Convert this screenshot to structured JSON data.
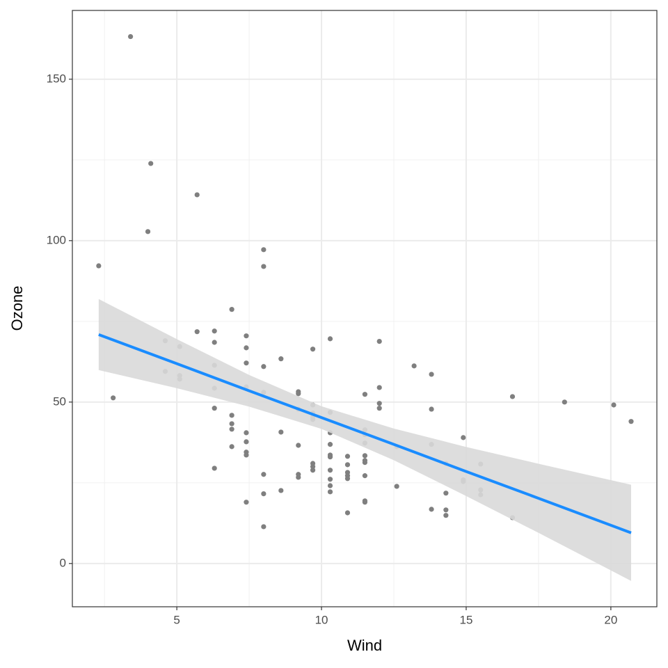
{
  "chart_data": {
    "type": "scatter",
    "x_label": "Wind",
    "y_label": "Ozone",
    "xlim": [
      1.39,
      21.59
    ],
    "ylim": [
      -13.4,
      171.3
    ],
    "xticks": [
      5,
      10,
      15,
      20
    ],
    "yticks": [
      0,
      50,
      100,
      150
    ],
    "minor_xticks": [
      2.5,
      7.5,
      12.5,
      17.5
    ],
    "minor_yticks": [
      25,
      75,
      125
    ],
    "grid": true,
    "point_color": "#7f7f7f",
    "x": [
      3.4,
      2.3,
      2.8,
      4.1,
      4.0,
      5.7,
      4.6,
      4.6,
      5.1,
      5.1,
      5.1,
      5.7,
      6.3,
      6.3,
      6.3,
      6.3,
      6.3,
      6.3,
      6.9,
      6.9,
      6.9,
      6.9,
      6.9,
      7.4,
      7.4,
      7.4,
      7.4,
      7.4,
      7.4,
      7.4,
      7.4,
      7.4,
      8.0,
      8.0,
      8.0,
      8.0,
      8.0,
      8.0,
      8.0,
      8.6,
      8.6,
      8.6,
      9.2,
      9.2,
      9.2,
      9.2,
      9.2,
      9.2,
      9.7,
      9.7,
      9.7,
      9.7,
      9.7,
      9.7,
      9.7,
      9.7,
      10.3,
      10.3,
      10.3,
      10.3,
      10.3,
      10.3,
      10.3,
      10.3,
      10.3,
      10.3,
      10.9,
      10.9,
      10.9,
      10.9,
      10.9,
      10.9,
      11.5,
      11.5,
      11.5,
      11.5,
      11.5,
      11.5,
      11.5,
      11.5,
      11.5,
      11.5,
      12.0,
      12.0,
      12.0,
      12.0,
      12.6,
      12.6,
      13.2,
      13.8,
      13.8,
      13.8,
      13.8,
      14.3,
      14.3,
      14.3,
      14.3,
      14.9,
      14.9,
      14.9,
      15.5,
      15.5,
      15.5,
      16.6,
      16.6,
      18.4,
      20.1,
      20.7
    ],
    "values": [
      163.2,
      92.2,
      51.3,
      123.9,
      102.8,
      114.2,
      69.0,
      59.5,
      67.2,
      58.2,
      57.1,
      71.8,
      72.0,
      68.5,
      61.4,
      54.3,
      48.1,
      29.5,
      78.7,
      45.9,
      43.3,
      41.6,
      36.2,
      70.5,
      66.8,
      62.1,
      54.7,
      40.5,
      37.7,
      34.5,
      33.6,
      19.0,
      97.2,
      92.0,
      61.0,
      53.0,
      27.6,
      21.6,
      11.4,
      63.4,
      40.7,
      22.6,
      53.2,
      52.6,
      47.8,
      36.6,
      27.6,
      26.7,
      66.4,
      49.1,
      46.6,
      45.3,
      44.6,
      31.0,
      30.0,
      28.9,
      69.6,
      46.8,
      40.5,
      36.9,
      33.6,
      33.0,
      28.9,
      26.1,
      24.1,
      22.2,
      33.2,
      30.6,
      28.2,
      27.2,
      26.3,
      15.7,
      52.4,
      41.4,
      39.9,
      37.3,
      33.4,
      31.9,
      31.3,
      27.2,
      19.4,
      19.0,
      68.8,
      54.5,
      49.6,
      48.1,
      36.2,
      23.9,
      61.2,
      58.6,
      47.8,
      36.9,
      16.8,
      31.0,
      21.8,
      16.6,
      14.9,
      39.0,
      25.9,
      25.4,
      30.8,
      22.8,
      21.3,
      51.7,
      14.2,
      50.0,
      49.1,
      44.0
    ],
    "fit": {
      "color": "#1a8cff",
      "band_color": "#d9d9d9",
      "x": [
        2.3,
        5,
        7.5,
        10,
        12.5,
        15,
        17.5,
        20.7
      ],
      "y": [
        70.9,
        61.9,
        53.5,
        45.2,
        36.9,
        28.5,
        20.2,
        9.5
      ],
      "lower": [
        59.9,
        54.3,
        48.6,
        41.7,
        32.0,
        20.9,
        9.5,
        -5.4
      ],
      "upper": [
        81.9,
        69.5,
        58.4,
        48.7,
        41.8,
        36.1,
        30.9,
        24.4
      ]
    }
  }
}
